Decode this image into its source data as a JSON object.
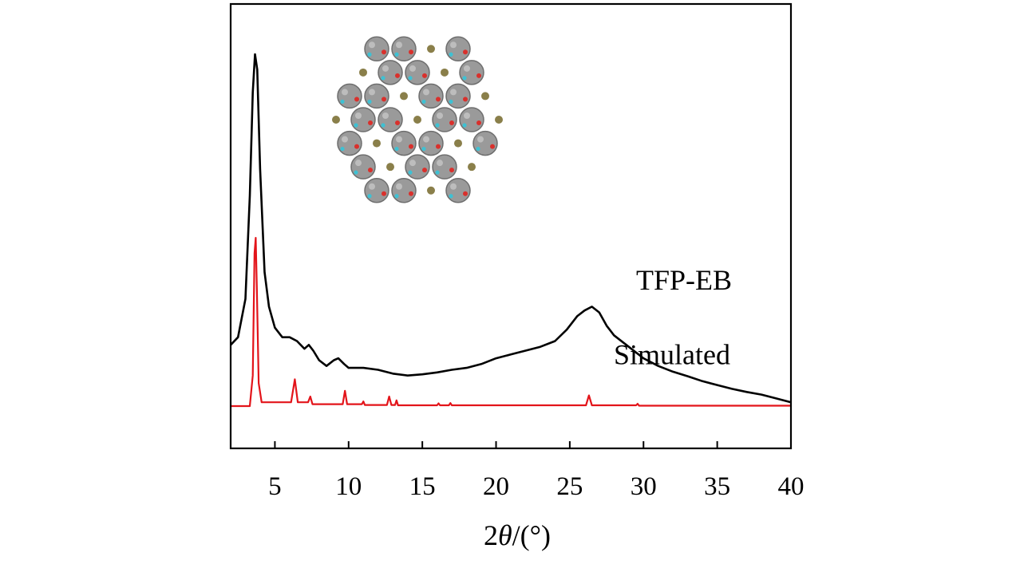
{
  "chart_data": {
    "type": "line",
    "xlabel_prefix": "2",
    "xlabel_symbol": "θ",
    "xlabel_suffix": "/(°)",
    "ylabel": "",
    "xlim": [
      2,
      40
    ],
    "x_ticks": [
      5,
      10,
      15,
      20,
      25,
      30,
      35,
      40
    ],
    "yticks_visible": false,
    "grid": false,
    "inset": "crystal-structure-model",
    "series": [
      {
        "name": "TFP-EB",
        "color": "#000000",
        "label_x": 29.5,
        "label_y": 0.33,
        "points": [
          [
            2.0,
            0.16
          ],
          [
            2.5,
            0.18
          ],
          [
            3.0,
            0.28
          ],
          [
            3.3,
            0.55
          ],
          [
            3.5,
            0.82
          ],
          [
            3.65,
            0.92
          ],
          [
            3.8,
            0.88
          ],
          [
            4.0,
            0.62
          ],
          [
            4.3,
            0.35
          ],
          [
            4.6,
            0.26
          ],
          [
            5.0,
            0.205
          ],
          [
            5.5,
            0.18
          ],
          [
            6.0,
            0.18
          ],
          [
            6.5,
            0.17
          ],
          [
            7.0,
            0.15
          ],
          [
            7.3,
            0.16
          ],
          [
            7.6,
            0.145
          ],
          [
            8.0,
            0.12
          ],
          [
            8.5,
            0.105
          ],
          [
            9.0,
            0.12
          ],
          [
            9.3,
            0.125
          ],
          [
            9.7,
            0.11
          ],
          [
            10,
            0.1
          ],
          [
            11,
            0.1
          ],
          [
            12,
            0.095
          ],
          [
            13,
            0.085
          ],
          [
            14,
            0.08
          ],
          [
            15,
            0.083
          ],
          [
            16,
            0.088
          ],
          [
            17,
            0.095
          ],
          [
            18,
            0.1
          ],
          [
            19,
            0.11
          ],
          [
            20,
            0.125
          ],
          [
            21,
            0.135
          ],
          [
            22,
            0.145
          ],
          [
            23,
            0.155
          ],
          [
            24,
            0.17
          ],
          [
            24.8,
            0.2
          ],
          [
            25.5,
            0.235
          ],
          [
            26,
            0.25
          ],
          [
            26.5,
            0.26
          ],
          [
            27,
            0.245
          ],
          [
            27.5,
            0.21
          ],
          [
            28,
            0.185
          ],
          [
            29,
            0.155
          ],
          [
            30,
            0.125
          ],
          [
            31,
            0.105
          ],
          [
            32,
            0.09
          ],
          [
            33,
            0.078
          ],
          [
            34,
            0.065
          ],
          [
            35,
            0.055
          ],
          [
            36,
            0.045
          ],
          [
            37,
            0.037
          ],
          [
            38,
            0.03
          ],
          [
            39,
            0.02
          ],
          [
            40,
            0.01
          ]
        ]
      },
      {
        "name": "Simulated",
        "color": "#e3141a",
        "label_x": 29.5,
        "label_y": 0.135,
        "points": [
          [
            2.0,
            0.0
          ],
          [
            3.3,
            0.0
          ],
          [
            3.5,
            0.08
          ],
          [
            3.62,
            0.4
          ],
          [
            3.7,
            0.44
          ],
          [
            3.78,
            0.3
          ],
          [
            3.9,
            0.06
          ],
          [
            4.1,
            0.01
          ],
          [
            6.1,
            0.01
          ],
          [
            6.35,
            0.07
          ],
          [
            6.55,
            0.01
          ],
          [
            7.25,
            0.01
          ],
          [
            7.4,
            0.025
          ],
          [
            7.55,
            0.005
          ],
          [
            9.6,
            0.005
          ],
          [
            9.75,
            0.04
          ],
          [
            9.9,
            0.005
          ],
          [
            10.9,
            0.005
          ],
          [
            11.0,
            0.012
          ],
          [
            11.1,
            0.003
          ],
          [
            12.6,
            0.003
          ],
          [
            12.75,
            0.025
          ],
          [
            12.9,
            0.003
          ],
          [
            13.15,
            0.003
          ],
          [
            13.25,
            0.015
          ],
          [
            13.35,
            0.002
          ],
          [
            16.0,
            0.002
          ],
          [
            16.1,
            0.007
          ],
          [
            16.2,
            0.002
          ],
          [
            16.8,
            0.002
          ],
          [
            16.9,
            0.008
          ],
          [
            17.0,
            0.002
          ],
          [
            26.1,
            0.002
          ],
          [
            26.3,
            0.028
          ],
          [
            26.5,
            0.002
          ],
          [
            29.5,
            0.002
          ],
          [
            29.6,
            0.006
          ],
          [
            29.7,
            0.001
          ],
          [
            40,
            0.001
          ]
        ]
      }
    ]
  }
}
